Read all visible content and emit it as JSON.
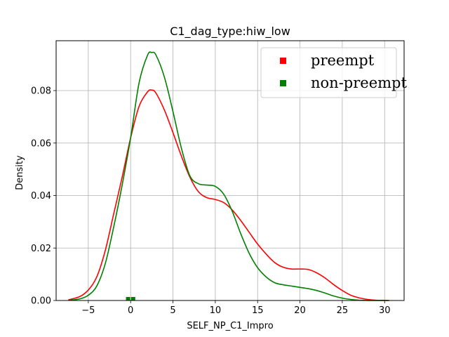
{
  "chart_data": {
    "type": "line",
    "title": "C1_dag_type:hiw_low",
    "xlabel": "SELF_NP_C1_Impro",
    "ylabel": "Density",
    "xlim": [
      -8.8,
      32.3
    ],
    "ylim": [
      0,
      0.099
    ],
    "x_ticks": [
      -5,
      0,
      5,
      10,
      15,
      20,
      25,
      30
    ],
    "x_tick_labels": [
      "−5",
      "0",
      "5",
      "10",
      "15",
      "20",
      "25",
      "30"
    ],
    "y_ticks": [
      0.0,
      0.02,
      0.04,
      0.06,
      0.08
    ],
    "y_tick_labels": [
      "0.00",
      "0.02",
      "0.04",
      "0.06",
      "0.08"
    ],
    "grid": true,
    "legend_position": "top-right",
    "series": [
      {
        "name": "preempt",
        "color": "#ff0000",
        "x": [
          -7.3,
          -6,
          -5,
          -4,
          -3,
          -2,
          -1,
          0,
          1,
          2,
          2.5,
          3,
          4,
          5,
          6,
          7,
          8,
          9,
          10,
          11,
          12,
          13,
          14,
          15,
          16,
          17,
          18,
          19,
          20,
          21,
          22,
          23,
          24,
          25,
          26,
          27,
          28,
          29,
          30,
          30.5
        ],
        "y": [
          0.0003,
          0.0015,
          0.004,
          0.009,
          0.019,
          0.033,
          0.047,
          0.062,
          0.074,
          0.0795,
          0.0802,
          0.079,
          0.0725,
          0.064,
          0.055,
          0.047,
          0.0415,
          0.0392,
          0.0385,
          0.0373,
          0.0345,
          0.0305,
          0.026,
          0.0215,
          0.0177,
          0.0145,
          0.0127,
          0.012,
          0.012,
          0.0118,
          0.0105,
          0.0085,
          0.006,
          0.0038,
          0.002,
          0.001,
          0.0004,
          0.0001,
          3e-05,
          0.0
        ]
      },
      {
        "name": "non-preempt",
        "color": "#008000",
        "x": [
          -7.3,
          -6,
          -5,
          -4,
          -3,
          -2,
          -1,
          0,
          1,
          2,
          2.5,
          3,
          4,
          5,
          6,
          7,
          8,
          9,
          10,
          11,
          12,
          13,
          14,
          15,
          16,
          17,
          18,
          19,
          20,
          21,
          22,
          23,
          24,
          25,
          26,
          27,
          28,
          29,
          30,
          30.5
        ],
        "y": [
          0.0001,
          0.0006,
          0.002,
          0.0055,
          0.014,
          0.028,
          0.044,
          0.062,
          0.083,
          0.0935,
          0.0945,
          0.0935,
          0.085,
          0.072,
          0.058,
          0.0475,
          0.0445,
          0.044,
          0.0435,
          0.0405,
          0.034,
          0.0255,
          0.018,
          0.0125,
          0.009,
          0.0068,
          0.006,
          0.0055,
          0.005,
          0.0045,
          0.0038,
          0.0028,
          0.0017,
          0.0009,
          0.0004,
          0.0001,
          3e-05,
          0.0,
          0.0,
          0.0
        ]
      }
    ],
    "rug": [
      {
        "series": "non-preempt",
        "color": "#008000",
        "x": [
          -0.3,
          0.3
        ]
      }
    ]
  }
}
